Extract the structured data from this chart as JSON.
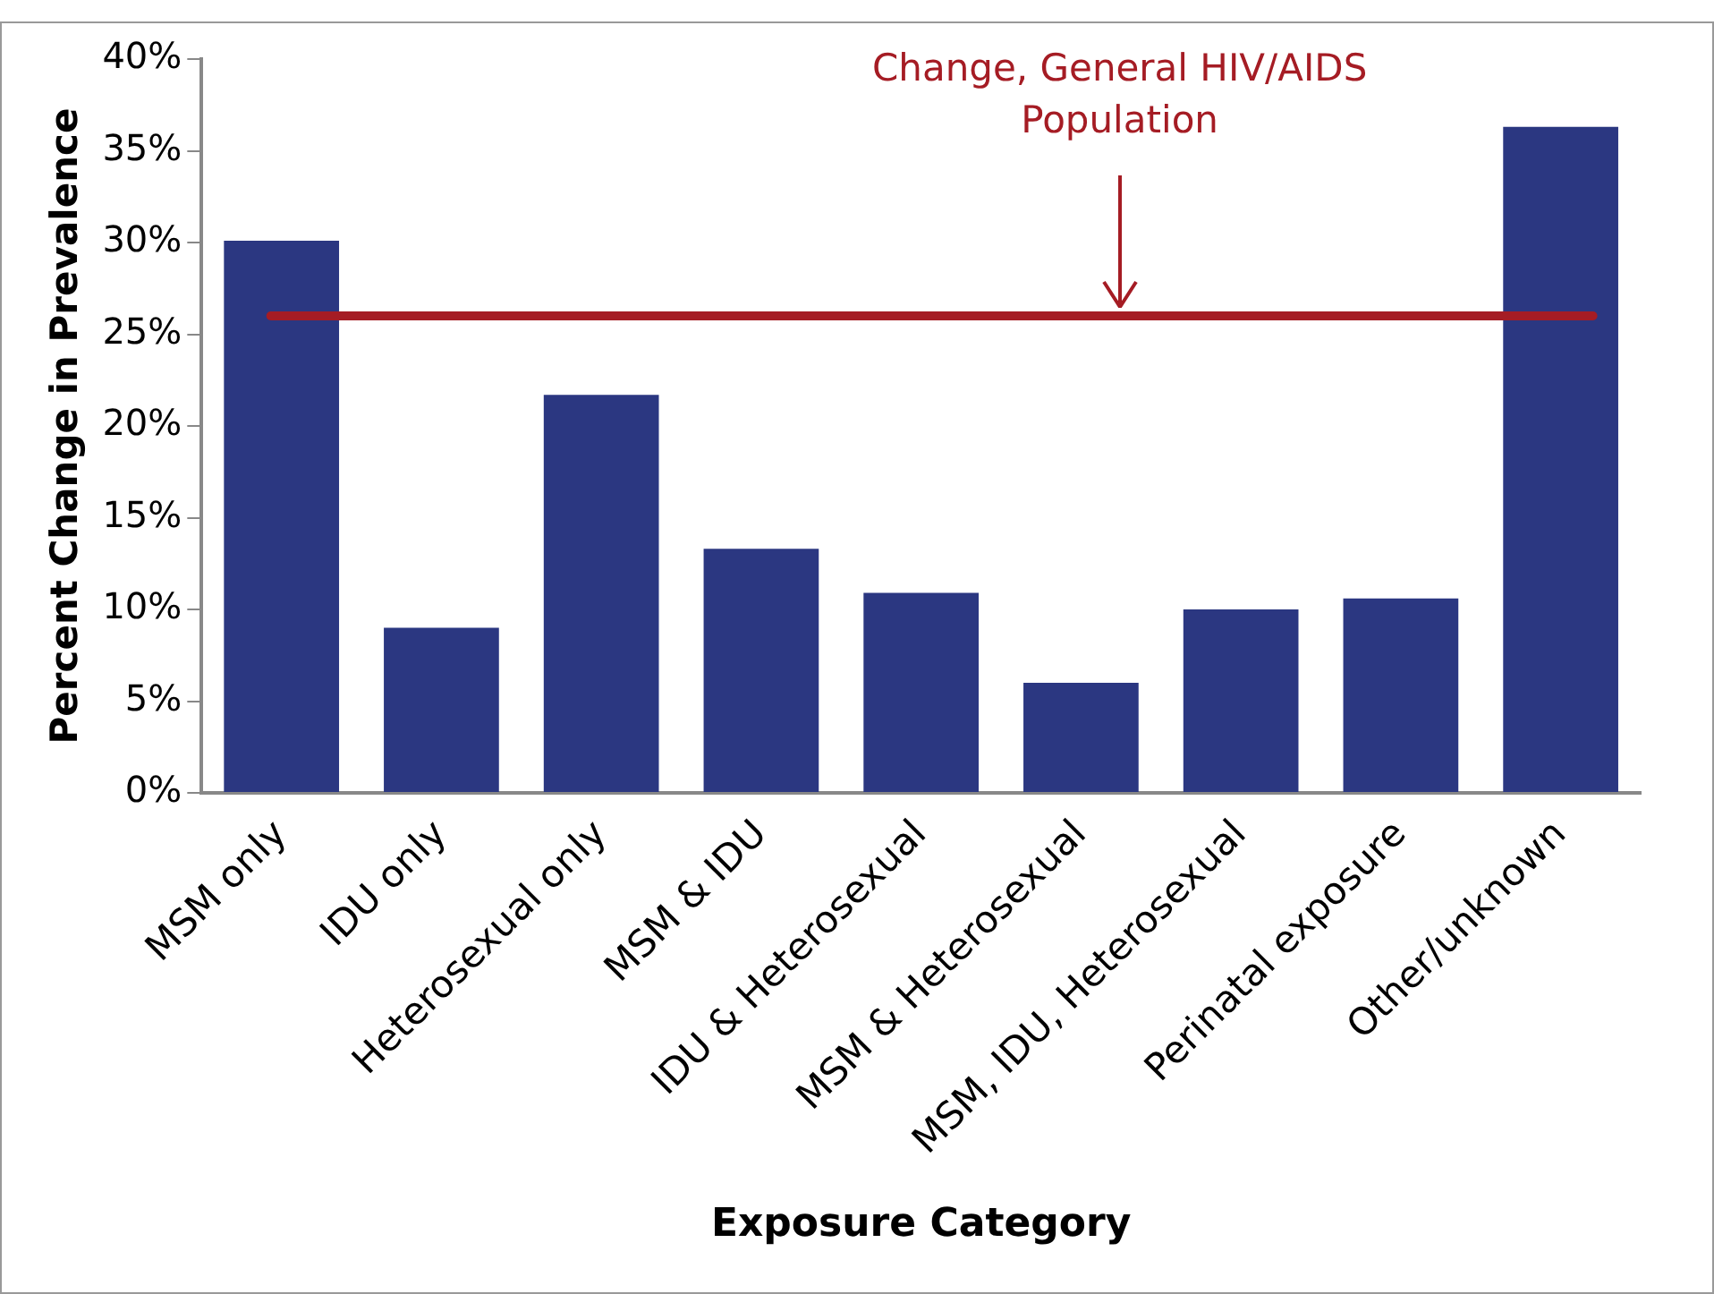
{
  "chart_data": {
    "type": "bar",
    "xlabel": "Exposure Category",
    "ylabel": "Percent Change in Prevalence",
    "categories": [
      "MSM only",
      "IDU only",
      "Heterosexual only",
      "MSM & IDU",
      "IDU & Heterosexual",
      "MSM & Heterosexual",
      "MSM, IDU, Heterosexual",
      "Perinatal exposure",
      "Other/unknown"
    ],
    "values": [
      30.1,
      9.0,
      21.7,
      13.3,
      10.9,
      6.0,
      10.0,
      10.6,
      36.3
    ],
    "color": "#2b3781",
    "ylim": [
      0,
      40
    ],
    "yticks": [
      {
        "value": 0,
        "label": "0%"
      },
      {
        "value": 5,
        "label": "5%"
      },
      {
        "value": 10,
        "label": "10%"
      },
      {
        "value": 15,
        "label": "15%"
      },
      {
        "value": 20,
        "label": "20%"
      },
      {
        "value": 25,
        "label": "25%"
      },
      {
        "value": 30,
        "label": "30%"
      },
      {
        "value": 35,
        "label": "35%"
      },
      {
        "value": 40,
        "label": "40%"
      }
    ],
    "grid": false,
    "legend": false,
    "ref_lines": [
      {
        "axis": "y",
        "value": 26.0,
        "label": "Change, General HIV/AIDS Population",
        "color": "#a51c24"
      }
    ]
  }
}
